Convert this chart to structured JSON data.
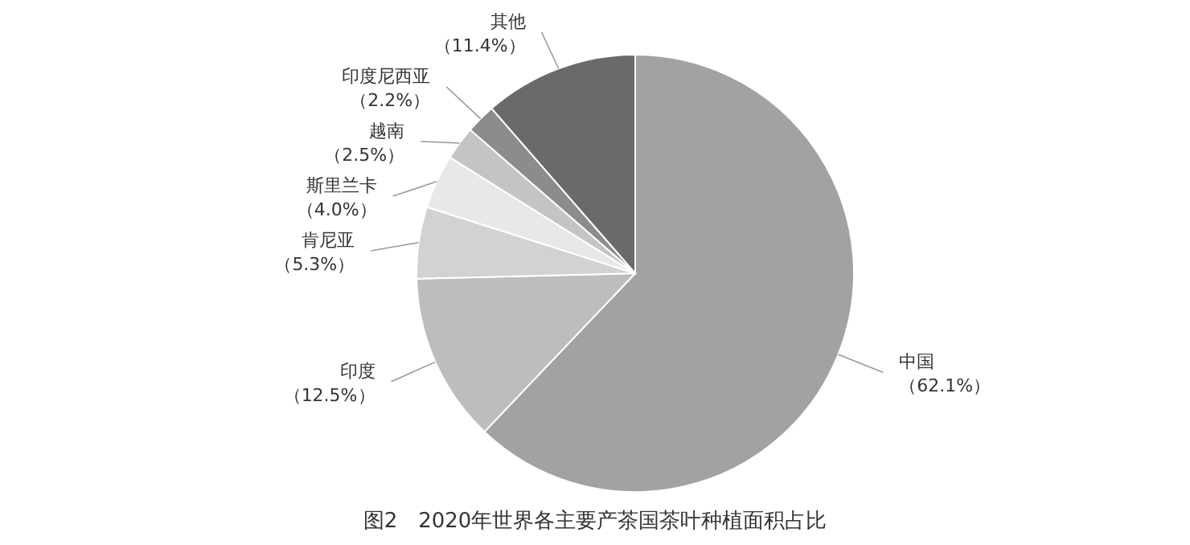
{
  "chart_data": {
    "type": "pie",
    "title": "图2　2020年世界各主要产茶国茶叶种植面积占比",
    "categories": [
      "中国",
      "印度",
      "肯尼亚",
      "斯里兰卡",
      "越南",
      "印度尼西亚",
      "其他"
    ],
    "values": [
      62.1,
      12.5,
      5.3,
      4.0,
      2.5,
      2.2,
      11.4
    ],
    "value_labels": [
      "（62.1%）",
      "（12.5%）",
      "（5.3%）",
      "（4.0%）",
      "（2.5%）",
      "（2.2%）",
      "（11.4%）"
    ],
    "colors": [
      "#a2a2a2",
      "#bdbdbd",
      "#d2d2d2",
      "#e8e8e8",
      "#c4c4c4",
      "#8c8c8c",
      "#6a6a6a"
    ],
    "legend": false
  }
}
